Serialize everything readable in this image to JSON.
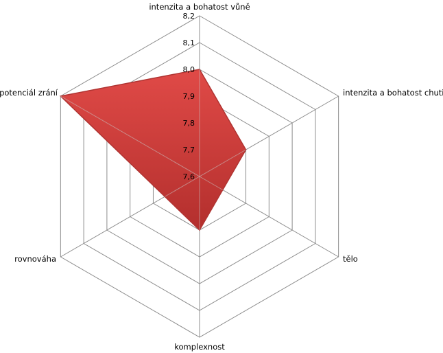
{
  "chart_data": {
    "type": "radar",
    "title": "",
    "axes": [
      "intenzita a bohatost vůně",
      "intenzita a bohatost chuti",
      "tělo",
      "komplexnost",
      "rovnováha",
      "potenciál zrání"
    ],
    "series": [
      {
        "values": [
          8.0,
          7.8,
          7.7,
          7.8,
          7.75,
          8.2
        ]
      }
    ],
    "rmin": 7.6,
    "rmax": 8.2,
    "ticks": [
      7.6,
      7.7,
      7.8,
      7.9,
      8.0,
      8.1,
      8.2
    ],
    "tick_labels": [
      "7,6",
      "7,7",
      "7,8",
      "7,9",
      "8,0",
      "8,1",
      "8,2"
    ],
    "grid": true,
    "legend": "none",
    "colors": {
      "fill": "#d9403e",
      "fill_dark": "#a92a28",
      "stroke": "#b03432",
      "grid": "#8c8c8c"
    }
  }
}
